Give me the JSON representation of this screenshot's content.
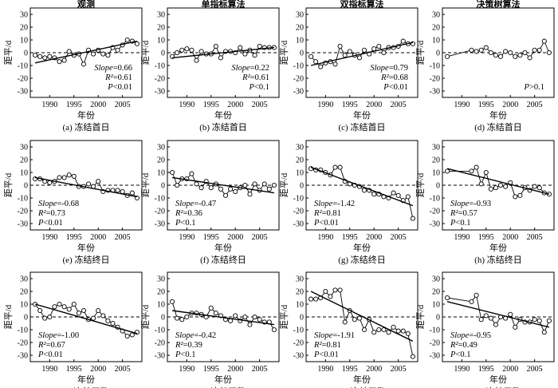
{
  "figure": {
    "x_ticks": [
      1990,
      1995,
      2000,
      2005
    ],
    "xlim": [
      1986,
      2009
    ],
    "ylim": [
      -35,
      35
    ],
    "y_ticks": [
      -30,
      -20,
      -10,
      0,
      10,
      20,
      30
    ],
    "xlabel": "年份",
    "ylabel": "距平/d"
  },
  "chart_data": [
    {
      "type": "scatter",
      "title": "观测",
      "caption": "(a) 冻结首日",
      "stats": [
        "Slope=0.66",
        "R²=0.61",
        "P<0.01"
      ],
      "x": [
        1987,
        1988,
        1989,
        1990,
        1991,
        1992,
        1993,
        1994,
        1995,
        1996,
        1997,
        1998,
        1999,
        2000,
        2001,
        2002,
        2003,
        2004,
        2005,
        2006,
        2007,
        2008
      ],
      "y": [
        -2,
        -3,
        -4,
        -3,
        -4,
        -7,
        -6,
        1,
        -2,
        -1,
        -9,
        2,
        -1,
        2,
        -1,
        -2,
        4,
        2,
        6,
        10,
        9,
        7
      ],
      "trend": [
        [
          1987,
          -8
        ],
        [
          2008,
          9
        ]
      ]
    },
    {
      "type": "scatter",
      "title": "单指标算法",
      "caption": "(b) 冻结首日",
      "stats": [
        "Slope=0.22",
        "R²=0.61",
        "P<0.1"
      ],
      "x": [
        1987,
        1988,
        1989,
        1990,
        1991,
        1992,
        1993,
        1994,
        1995,
        1996,
        1997,
        1998,
        1999,
        2000,
        2001,
        2002,
        2003,
        2004,
        2005,
        2006,
        2007,
        2008
      ],
      "y": [
        -3,
        0,
        2,
        3,
        2,
        -6,
        1,
        -1,
        -1,
        5,
        -4,
        1,
        1,
        0,
        4,
        -1,
        2,
        -2,
        5,
        4,
        4,
        4
      ],
      "trend": [
        [
          1987,
          -4
        ],
        [
          2008,
          4
        ]
      ]
    },
    {
      "type": "scatter",
      "title": "双指标算法",
      "caption": "(c) 冻结首日",
      "stats": [
        "Slope=0.79",
        "R²=0.68",
        "P<0.01"
      ],
      "x": [
        1987,
        1988,
        1989,
        1990,
        1991,
        1992,
        1993,
        1994,
        1995,
        1996,
        1997,
        1998,
        1999,
        2000,
        2001,
        2002,
        2003,
        2004,
        2005,
        2006,
        2007,
        2008
      ],
      "y": [
        -3,
        -7,
        -11,
        -8,
        -7,
        -9,
        5,
        -2,
        1,
        -2,
        -4,
        2,
        -1,
        3,
        5,
        0,
        4,
        4,
        5,
        9,
        7,
        7
      ],
      "trend": [
        [
          1987,
          -10
        ],
        [
          2008,
          8
        ]
      ]
    },
    {
      "type": "scatter",
      "title": "决策树算法",
      "caption": "(d) 冻结首日",
      "stats": [
        "P>0.1"
      ],
      "x": [
        1987,
        1992,
        1993,
        1994,
        1995,
        1996,
        1997,
        1998,
        1999,
        2000,
        2001,
        2002,
        2003,
        2004,
        2005,
        2006,
        2007,
        2008
      ],
      "y": [
        -3,
        2,
        1,
        2,
        4,
        0,
        -2,
        -3,
        1,
        0,
        -3,
        -2,
        0,
        -4,
        2,
        2,
        9,
        0
      ],
      "trend": null
    },
    {
      "type": "scatter",
      "title": "",
      "caption": "(e) 冻结终日",
      "stats": [
        "Slope=-0.68",
        "R²=0.73",
        "P<0.01"
      ],
      "x": [
        1987,
        1988,
        1989,
        1990,
        1991,
        1992,
        1993,
        1994,
        1995,
        1996,
        1997,
        1998,
        1999,
        2000,
        2001,
        2002,
        2003,
        2004,
        2005,
        2006,
        2007,
        2008
      ],
      "y": [
        5,
        5,
        3,
        2,
        3,
        6,
        6,
        8,
        7,
        -1,
        -1,
        1,
        -1,
        3,
        -5,
        -4,
        -4,
        -4,
        -5,
        -8,
        -6,
        -10
      ],
      "trend": [
        [
          1987,
          6
        ],
        [
          2008,
          -9
        ]
      ]
    },
    {
      "type": "scatter",
      "title": "",
      "caption": "(f) 冻结终日",
      "stats": [
        "Slope=-0.47",
        "R²=0.36",
        "P<0.1"
      ],
      "x": [
        1987,
        1988,
        1989,
        1990,
        1991,
        1992,
        1993,
        1994,
        1995,
        1996,
        1997,
        1998,
        1999,
        2000,
        2001,
        2002,
        2003,
        2004,
        2005,
        2006,
        2007,
        2008
      ],
      "y": [
        10,
        0,
        5,
        5,
        9,
        1,
        -2,
        3,
        -2,
        1,
        -3,
        -8,
        -3,
        -5,
        -2,
        0,
        -7,
        1,
        -4,
        1,
        -3,
        0
      ],
      "trend": [
        [
          1987,
          6
        ],
        [
          2008,
          -6
        ]
      ]
    },
    {
      "type": "scatter",
      "title": "",
      "caption": "(g) 冻结终日",
      "stats": [
        "Slope=-1.42",
        "R²=0.81",
        "P<0.01"
      ],
      "x": [
        1987,
        1988,
        1989,
        1990,
        1991,
        1992,
        1993,
        1994,
        1995,
        1996,
        1997,
        1998,
        1999,
        2000,
        2001,
        2002,
        2003,
        2004,
        2005,
        2006,
        2007,
        2008
      ],
      "y": [
        13,
        12,
        12,
        10,
        8,
        14,
        14,
        3,
        1,
        0,
        -1,
        -4,
        -4,
        -7,
        -7,
        -9,
        -10,
        -6,
        -8,
        -12,
        -9,
        -26
      ],
      "trend": [
        [
          1987,
          14
        ],
        [
          2008,
          -16
        ]
      ]
    },
    {
      "type": "scatter",
      "title": "",
      "caption": "(h) 冻结终日",
      "stats": [
        "Slope=-0.93",
        "R²=0.57",
        "P<0.1"
      ],
      "x": [
        1987,
        1992,
        1993,
        1994,
        1995,
        1996,
        1997,
        1998,
        1999,
        2000,
        2001,
        2002,
        2003,
        2004,
        2005,
        2006,
        2007,
        2008
      ],
      "y": [
        11,
        11,
        14,
        1,
        10,
        -3,
        -2,
        0,
        -1,
        2,
        -9,
        -8,
        -2,
        -4,
        -1,
        -2,
        -6,
        -7
      ],
      "trend": [
        [
          1987,
          13
        ],
        [
          2008,
          -7
        ]
      ]
    },
    {
      "type": "scatter",
      "title": "",
      "caption": "(i) 冻结天数",
      "stats": [
        "Slope=-1.00",
        "R²=0.67",
        "P<0.01"
      ],
      "x": [
        1987,
        1988,
        1989,
        1990,
        1991,
        1992,
        1993,
        1994,
        1995,
        1996,
        1997,
        1998,
        1999,
        2000,
        2001,
        2002,
        2003,
        2004,
        2005,
        2006,
        2007,
        2008
      ],
      "y": [
        10,
        5,
        -1,
        0,
        8,
        10,
        8,
        6,
        10,
        3,
        5,
        -2,
        -1,
        5,
        1,
        -3,
        -5,
        -8,
        -11,
        -15,
        -14,
        -12
      ],
      "trend": [
        [
          1987,
          10
        ],
        [
          2008,
          -13
        ]
      ]
    },
    {
      "type": "scatter",
      "title": "",
      "caption": "(j) 冻结天数",
      "stats": [
        "Slope=-0.42",
        "R²=0.39",
        "P<0.1"
      ],
      "x": [
        1987,
        1988,
        1989,
        1990,
        1991,
        1992,
        1993,
        1994,
        1995,
        1996,
        1997,
        1998,
        1999,
        2000,
        2001,
        2002,
        2003,
        2004,
        2005,
        2006,
        2007,
        2008
      ],
      "y": [
        12,
        -1,
        -2,
        0,
        3,
        3,
        2,
        0,
        7,
        3,
        1,
        -2,
        -3,
        1,
        -3,
        0,
        -6,
        0,
        -2,
        -4,
        -4,
        -10
      ],
      "trend": [
        [
          1987,
          5
        ],
        [
          2008,
          -6
        ]
      ]
    },
    {
      "type": "scatter",
      "title": "",
      "caption": "(k) 冻结天数",
      "stats": [
        "Slope=-1.91",
        "R²=0.81",
        "P<0.01"
      ],
      "x": [
        1987,
        1988,
        1989,
        1990,
        1991,
        1992,
        1993,
        1994,
        1995,
        1996,
        1997,
        1998,
        1999,
        2000,
        2001,
        2002,
        2003,
        2004,
        2005,
        2006,
        2007,
        2008
      ],
      "y": [
        14,
        14,
        15,
        20,
        16,
        21,
        21,
        -4,
        5,
        -2,
        -1,
        -10,
        -2,
        -12,
        -10,
        -10,
        -12,
        -8,
        -11,
        -11,
        -13,
        -31
      ],
      "trend": [
        [
          1987,
          20
        ],
        [
          2008,
          -19
        ]
      ]
    },
    {
      "type": "scatter",
      "title": "",
      "caption": "(l) 冻结天数",
      "stats": [
        "Slope=-0.95",
        "R²=0.49",
        "P<0.1"
      ],
      "x": [
        1987,
        1992,
        1993,
        1994,
        1995,
        1996,
        1997,
        1998,
        1999,
        2000,
        2001,
        2002,
        2003,
        2004,
        2005,
        2006,
        2007,
        2008
      ],
      "y": [
        15,
        12,
        17,
        -2,
        1,
        -1,
        -6,
        0,
        -1,
        2,
        -8,
        -2,
        -4,
        -4,
        -2,
        -3,
        -12,
        -3
      ],
      "trend": [
        [
          1987,
          12
        ],
        [
          2008,
          -8
        ]
      ]
    }
  ]
}
